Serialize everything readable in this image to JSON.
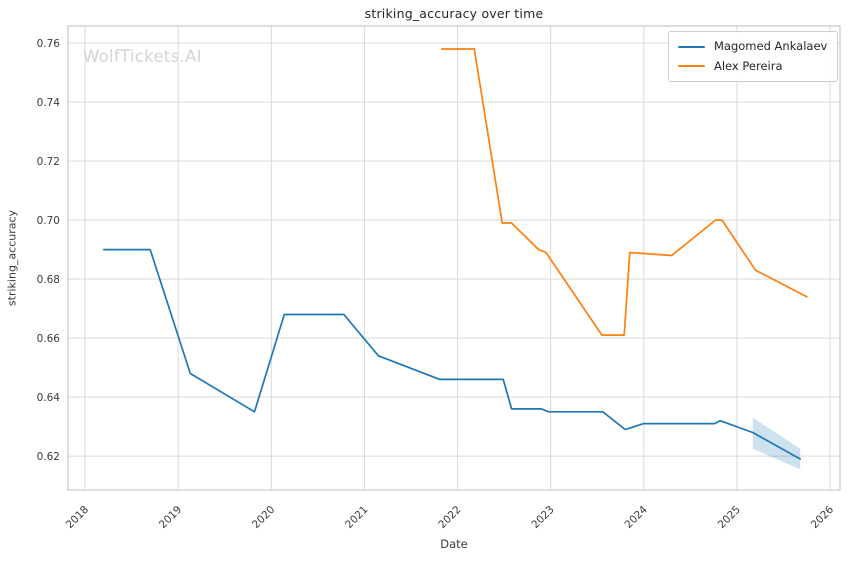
{
  "watermark": "WolfTickets.AI",
  "chart_data": {
    "type": "line",
    "title": "striking_accuracy over time",
    "xlabel": "Date",
    "ylabel": "striking_accuracy",
    "grid": true,
    "legend_position": "upper right",
    "x_ticks": [
      2018,
      2019,
      2020,
      2021,
      2022,
      2023,
      2024,
      2025,
      2026
    ],
    "y_ticks": [
      0.62,
      0.64,
      0.66,
      0.68,
      0.7,
      0.72,
      0.74,
      0.76
    ],
    "xlim": [
      2017.817,
      2026.107
    ],
    "ylim": [
      0.6085,
      0.7658
    ],
    "grid_color": "#d9d9d9",
    "spine_color": "#c9c9c9",
    "text_color": "#3a3a3a",
    "series": [
      {
        "name": "Magomed Ankalaev",
        "color": "#1f77b4",
        "points": [
          [
            2018.2,
            0.69
          ],
          [
            2018.7,
            0.69
          ],
          [
            2019.13,
            0.648
          ],
          [
            2019.82,
            0.635
          ],
          [
            2020.14,
            0.668
          ],
          [
            2020.78,
            0.668
          ],
          [
            2021.15,
            0.654
          ],
          [
            2021.81,
            0.646
          ],
          [
            2022.49,
            0.646
          ],
          [
            2022.58,
            0.636
          ],
          [
            2022.9,
            0.636
          ],
          [
            2022.98,
            0.635
          ],
          [
            2023.56,
            0.635
          ],
          [
            2023.8,
            0.629
          ],
          [
            2024.0,
            0.631
          ],
          [
            2024.76,
            0.631
          ],
          [
            2024.82,
            0.632
          ],
          [
            2025.17,
            0.628
          ],
          [
            2025.68,
            0.619
          ]
        ]
      },
      {
        "name": "Alex Pereira",
        "color": "#ff7f0e",
        "points": [
          [
            2021.83,
            0.758
          ],
          [
            2022.18,
            0.758
          ],
          [
            2022.48,
            0.699
          ],
          [
            2022.58,
            0.699
          ],
          [
            2022.87,
            0.69
          ],
          [
            2022.95,
            0.689
          ],
          [
            2023.55,
            0.661
          ],
          [
            2023.79,
            0.661
          ],
          [
            2023.85,
            0.689
          ],
          [
            2024.3,
            0.688
          ],
          [
            2024.77,
            0.7
          ],
          [
            2024.84,
            0.7
          ],
          [
            2025.2,
            0.683
          ],
          [
            2025.75,
            0.674
          ]
        ]
      }
    ],
    "forecast_band": {
      "series": "Magomed Ankalaev",
      "fill_color": "rgba(31,119,180,0.22)",
      "x": [
        2025.17,
        2025.68
      ],
      "top": [
        0.633,
        0.6225
      ],
      "bottom": [
        0.6225,
        0.6155
      ]
    }
  }
}
